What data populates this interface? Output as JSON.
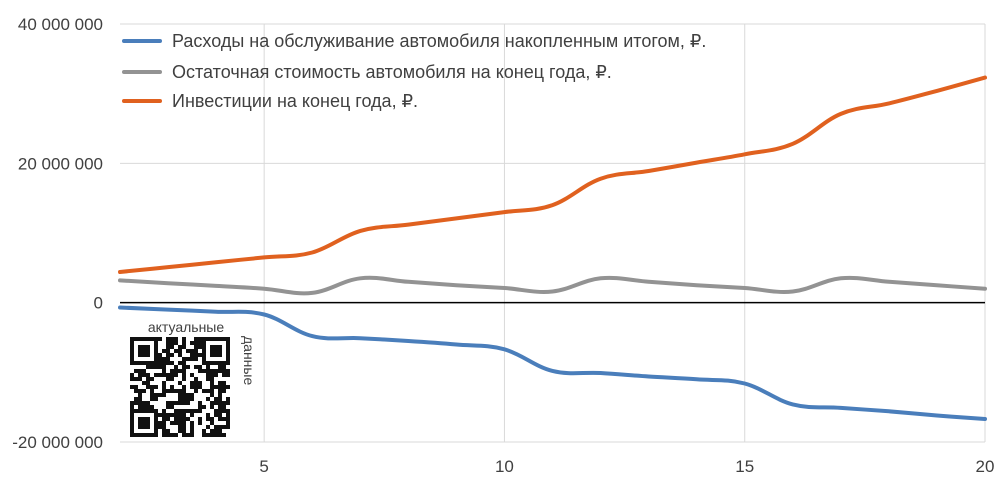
{
  "chart_data": {
    "type": "line",
    "title": "",
    "xlabel": "",
    "ylabel": "",
    "xlim": [
      2,
      20
    ],
    "ylim": [
      -20000000,
      40000000
    ],
    "x_ticks": [
      5,
      10,
      15,
      20
    ],
    "x_tick_labels": [
      "5",
      "10",
      "15",
      "20"
    ],
    "y_ticks": [
      40000000,
      20000000,
      0,
      -20000000
    ],
    "y_tick_labels": [
      "40 000 000",
      "20 000 000",
      "0",
      "-20 000 000"
    ],
    "grid": true,
    "legend_position": "top-left",
    "series": [
      {
        "name": "Расходы на обслуживание автомобиля накопленным итогом, ₽.",
        "color": "#4a7ebb",
        "x": [
          2,
          3,
          4,
          5,
          6,
          7,
          8,
          9,
          10,
          11,
          12,
          13,
          14,
          15,
          16,
          17,
          18,
          19,
          20
        ],
        "y": [
          -700000,
          -1000000,
          -1300000,
          -1700000,
          -4800000,
          -5100000,
          -5500000,
          -6000000,
          -6700000,
          -9800000,
          -10100000,
          -10600000,
          -11000000,
          -11600000,
          -14600000,
          -15100000,
          -15600000,
          -16200000,
          -16700000
        ]
      },
      {
        "name": "Остаточная стоимость автомобиля на конец года, ₽.",
        "color": "#939393",
        "x": [
          2,
          3,
          4,
          5,
          6,
          7,
          8,
          9,
          10,
          11,
          12,
          13,
          14,
          15,
          16,
          17,
          18,
          19,
          20
        ],
        "y": [
          3200000,
          2800000,
          2400000,
          2000000,
          1400000,
          3500000,
          3000000,
          2500000,
          2100000,
          1600000,
          3500000,
          3000000,
          2500000,
          2100000,
          1600000,
          3500000,
          3000000,
          2500000,
          2000000
        ]
      },
      {
        "name": "Инвестиции на конец года, ₽.",
        "color": "#e0611f",
        "x": [
          2,
          3,
          4,
          5,
          6,
          7,
          8,
          9,
          10,
          11,
          12,
          13,
          14,
          15,
          16,
          17,
          18,
          19,
          20
        ],
        "y": [
          4400000,
          5100000,
          5800000,
          6500000,
          7200000,
          10300000,
          11200000,
          12100000,
          13000000,
          14000000,
          17800000,
          18900000,
          20100000,
          21300000,
          22800000,
          27100000,
          28600000,
          30400000,
          32300000
        ]
      }
    ]
  },
  "qr": {
    "label_top": "актуальные",
    "label_side": "данные"
  }
}
